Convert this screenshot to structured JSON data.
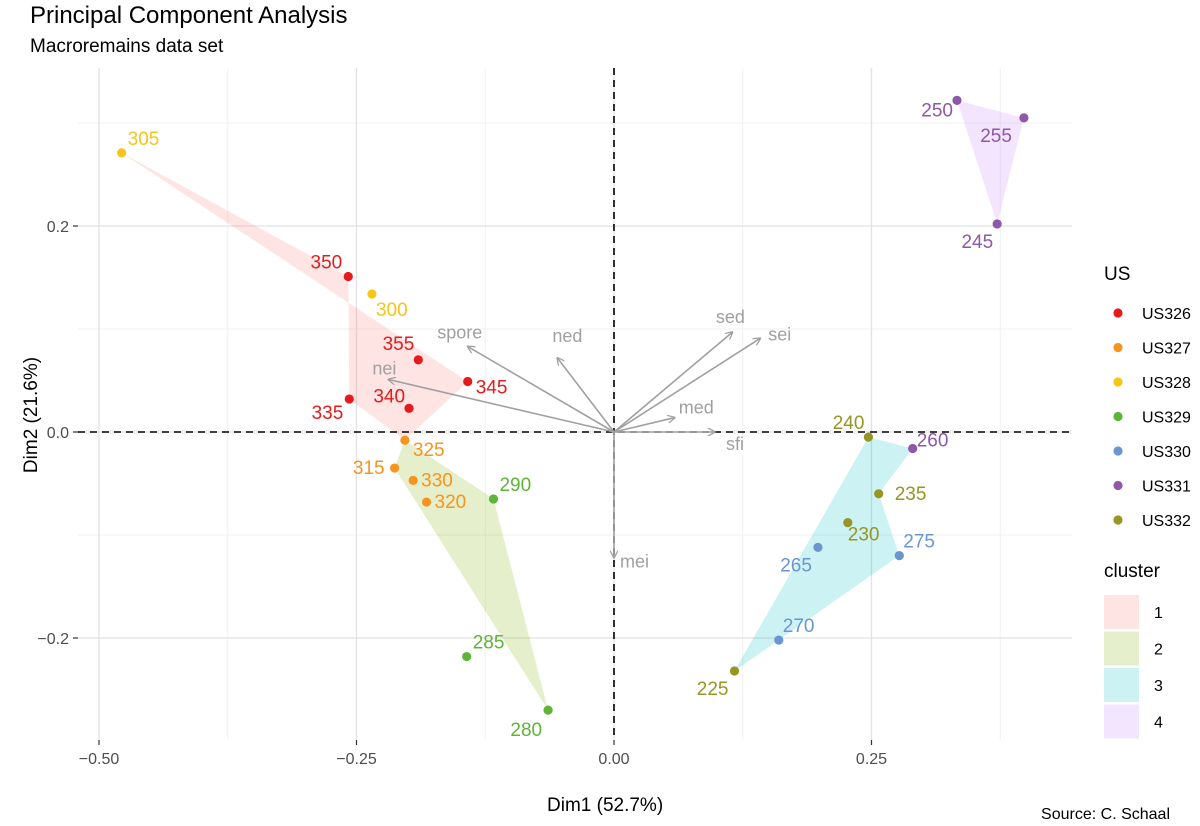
{
  "chart_data": {
    "type": "scatter",
    "title": "Principal Component Analysis",
    "subtitle": "Macroremains data set",
    "caption": "Source: C. Schaal",
    "xlabel": "Dim1 (52.7%)",
    "ylabel": "Dim2 (21.6%)",
    "xlim": [
      -0.5,
      0.44
    ],
    "ylim": [
      -0.31,
      0.36
    ],
    "xticks": [
      -0.5,
      -0.25,
      0.0,
      0.25
    ],
    "xtick_labels": [
      "−0.50",
      "−0.25",
      "0.00",
      "0.25"
    ],
    "yticks": [
      -0.2,
      0.0,
      0.2
    ],
    "ytick_labels": [
      "−0.2",
      "0.0",
      "0.2"
    ],
    "grid": true,
    "reference_lines": {
      "x": 0.0,
      "y": 0.0,
      "style": "dashed"
    },
    "group_legend": {
      "title": "US",
      "entries": [
        {
          "name": "US326",
          "color": "#E41A1C"
        },
        {
          "name": "US327",
          "color": "#F7941D"
        },
        {
          "name": "US328",
          "color": "#F5C518"
        },
        {
          "name": "US329",
          "color": "#5DB538"
        },
        {
          "name": "US330",
          "color": "#6A95D0"
        },
        {
          "name": "US331",
          "color": "#8E57A8"
        },
        {
          "name": "US332",
          "color": "#969624"
        }
      ]
    },
    "cluster_legend": {
      "title": "cluster",
      "entries": [
        {
          "name": "1",
          "color": "#F8766D"
        },
        {
          "name": "2",
          "color": "#7CAE00"
        },
        {
          "name": "3",
          "color": "#00BFC4"
        },
        {
          "name": "4",
          "color": "#C77CFF"
        }
      ]
    },
    "cluster_hulls": [
      {
        "cluster": "1",
        "points": [
          "305",
          "345",
          "325",
          "335",
          "350"
        ]
      },
      {
        "cluster": "2",
        "points": [
          "325",
          "290",
          "280",
          "315"
        ]
      },
      {
        "cluster": "3",
        "points": [
          "240",
          "260",
          "235",
          "275",
          "225"
        ]
      },
      {
        "cluster": "4",
        "points": [
          "250",
          "255",
          "245"
        ]
      }
    ],
    "points": [
      {
        "label": "305",
        "x": -0.478,
        "y": 0.271,
        "group": "US328"
      },
      {
        "label": "350",
        "x": -0.258,
        "y": 0.151,
        "group": "US326"
      },
      {
        "label": "300",
        "x": -0.235,
        "y": 0.134,
        "group": "US328"
      },
      {
        "label": "355",
        "x": -0.19,
        "y": 0.07,
        "group": "US326"
      },
      {
        "label": "345",
        "x": -0.142,
        "y": 0.049,
        "group": "US326"
      },
      {
        "label": "335",
        "x": -0.257,
        "y": 0.032,
        "group": "US326"
      },
      {
        "label": "340",
        "x": -0.199,
        "y": 0.023,
        "group": "US326"
      },
      {
        "label": "325",
        "x": -0.203,
        "y": -0.008,
        "group": "US327"
      },
      {
        "label": "315",
        "x": -0.213,
        "y": -0.035,
        "group": "US327"
      },
      {
        "label": "330",
        "x": -0.195,
        "y": -0.047,
        "group": "US327"
      },
      {
        "label": "320",
        "x": -0.182,
        "y": -0.068,
        "group": "US327"
      },
      {
        "label": "290",
        "x": -0.117,
        "y": -0.065,
        "group": "US329"
      },
      {
        "label": "285",
        "x": -0.143,
        "y": -0.218,
        "group": "US329"
      },
      {
        "label": "280",
        "x": -0.064,
        "y": -0.27,
        "group": "US329"
      },
      {
        "label": "250",
        "x": 0.333,
        "y": 0.322,
        "group": "US331"
      },
      {
        "label": "255",
        "x": 0.398,
        "y": 0.305,
        "group": "US331"
      },
      {
        "label": "245",
        "x": 0.372,
        "y": 0.202,
        "group": "US331"
      },
      {
        "label": "240",
        "x": 0.247,
        "y": -0.005,
        "group": "US332"
      },
      {
        "label": "260",
        "x": 0.29,
        "y": -0.016,
        "group": "US331"
      },
      {
        "label": "235",
        "x": 0.257,
        "y": -0.06,
        "group": "US332"
      },
      {
        "label": "230",
        "x": 0.227,
        "y": -0.088,
        "group": "US332"
      },
      {
        "label": "265",
        "x": 0.198,
        "y": -0.112,
        "group": "US330"
      },
      {
        "label": "275",
        "x": 0.277,
        "y": -0.12,
        "group": "US330"
      },
      {
        "label": "270",
        "x": 0.16,
        "y": -0.202,
        "group": "US330"
      },
      {
        "label": "225",
        "x": 0.117,
        "y": -0.232,
        "group": "US332"
      }
    ],
    "variable_vectors": [
      {
        "name": "sed",
        "x": 0.115,
        "y": 0.097
      },
      {
        "name": "sei",
        "x": 0.142,
        "y": 0.091
      },
      {
        "name": "spore",
        "x": -0.142,
        "y": 0.083
      },
      {
        "name": "ned",
        "x": -0.055,
        "y": 0.072
      },
      {
        "name": "nei",
        "x": -0.219,
        "y": 0.051
      },
      {
        "name": "med",
        "x": 0.059,
        "y": 0.014
      },
      {
        "name": "sfi",
        "x": 0.098,
        "y": 0.0
      },
      {
        "name": "mei",
        "x": 0.0,
        "y": -0.122
      }
    ]
  }
}
